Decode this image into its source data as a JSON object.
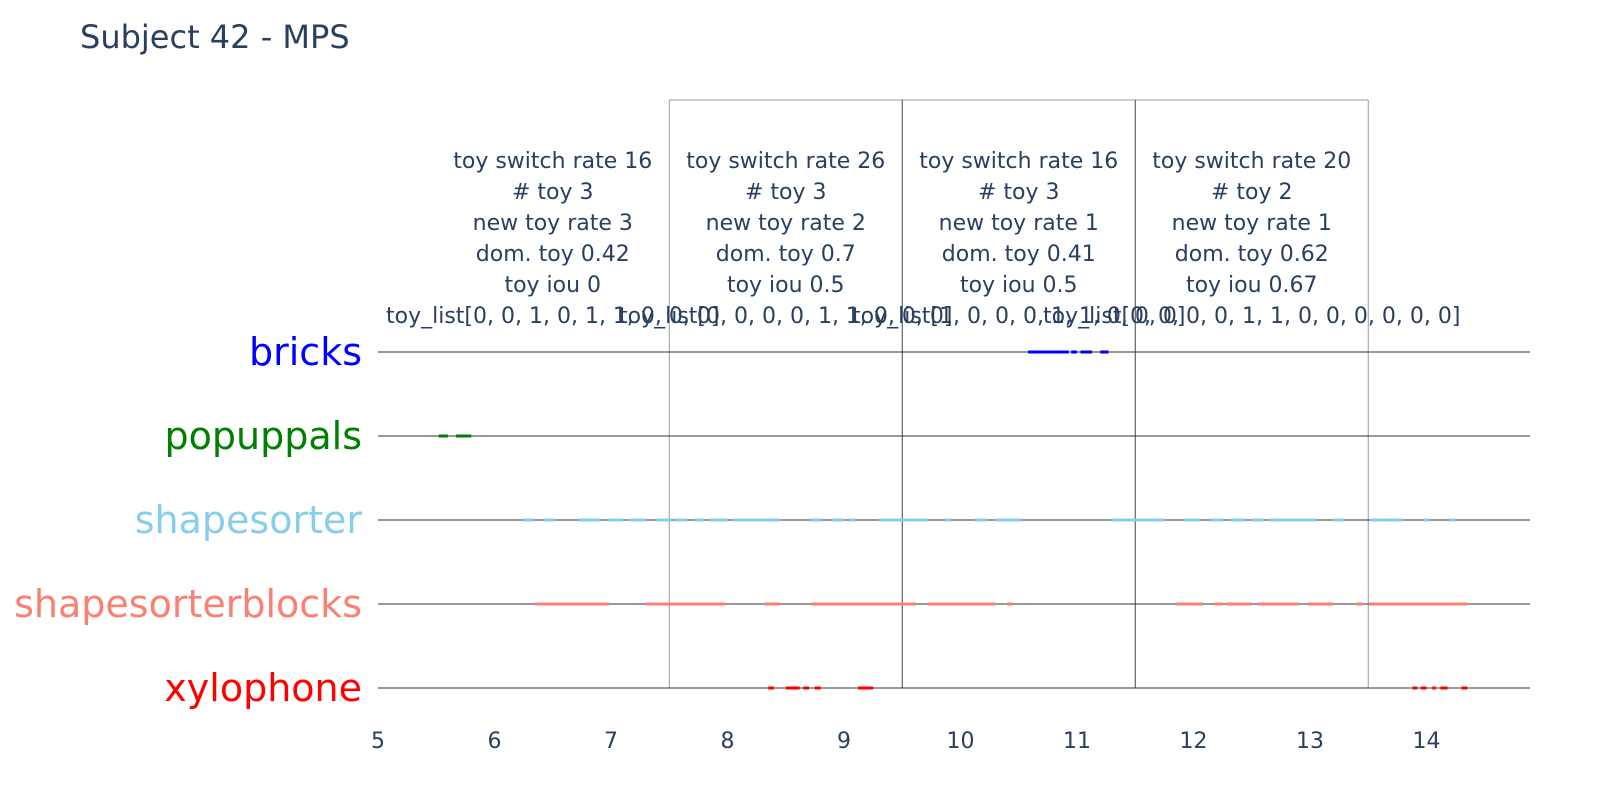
{
  "chart_data": {
    "type": "timeline",
    "title": "Subject 42 - MPS",
    "xlim": [
      5,
      14.9
    ],
    "x_ticks": [
      5,
      6,
      7,
      8,
      9,
      10,
      11,
      12,
      13,
      14
    ],
    "window_bounds": [
      7.5,
      9.5,
      11.5,
      13.5
    ],
    "toys": [
      {
        "name": "bricks",
        "label": "bricks",
        "color": "#0000ff",
        "segments": [
          [
            10.58,
            10.93
          ],
          [
            10.95,
            11.0
          ],
          [
            11.03,
            11.13
          ],
          [
            11.2,
            11.27
          ]
        ]
      },
      {
        "name": "popuppals",
        "label": "popuppals",
        "color": "#008000",
        "segments": [
          [
            5.52,
            5.6
          ],
          [
            5.67,
            5.8
          ]
        ]
      },
      {
        "name": "shape_sorter",
        "label": "shapesorter",
        "color": "#87ceeb",
        "segments": [
          [
            6.25,
            6.33
          ],
          [
            6.42,
            6.52
          ],
          [
            6.72,
            6.9
          ],
          [
            6.97,
            7.1
          ],
          [
            7.15,
            7.3
          ],
          [
            7.38,
            7.52
          ],
          [
            7.55,
            7.65
          ],
          [
            7.72,
            7.8
          ],
          [
            7.85,
            8.0
          ],
          [
            8.05,
            8.45
          ],
          [
            8.72,
            8.8
          ],
          [
            8.9,
            9.0
          ],
          [
            9.05,
            9.1
          ],
          [
            9.3,
            9.72
          ],
          [
            9.87,
            9.92
          ],
          [
            10.12,
            10.22
          ],
          [
            10.3,
            10.52
          ],
          [
            11.3,
            11.75
          ],
          [
            11.92,
            12.05
          ],
          [
            12.15,
            12.25
          ],
          [
            12.32,
            12.45
          ],
          [
            12.5,
            12.6
          ],
          [
            12.65,
            13.05
          ],
          [
            13.2,
            13.3
          ],
          [
            13.52,
            13.8
          ],
          [
            13.98,
            14.02
          ],
          [
            14.2,
            14.25
          ]
        ]
      },
      {
        "name": "shape_sorter_blocks",
        "label": "shapesorterblocks",
        "color": "#fa8072",
        "segments": [
          [
            6.35,
            6.98
          ],
          [
            7.3,
            7.98
          ],
          [
            8.32,
            8.45
          ],
          [
            8.72,
            9.62
          ],
          [
            9.72,
            10.3
          ],
          [
            10.4,
            10.45
          ],
          [
            11.85,
            12.08
          ],
          [
            12.18,
            12.25
          ],
          [
            12.28,
            12.5
          ],
          [
            12.55,
            12.9
          ],
          [
            12.98,
            13.2
          ],
          [
            13.4,
            13.45
          ],
          [
            13.5,
            14.35
          ]
        ]
      },
      {
        "name": "xylophone",
        "label": "xylophone",
        "color": "#ff0000",
        "segments": [
          [
            8.35,
            8.4
          ],
          [
            8.5,
            8.62
          ],
          [
            8.65,
            8.7
          ],
          [
            8.75,
            8.8
          ],
          [
            9.12,
            9.25
          ],
          [
            13.88,
            13.92
          ],
          [
            13.95,
            14.0
          ],
          [
            14.05,
            14.08
          ],
          [
            14.12,
            14.18
          ],
          [
            14.3,
            14.35
          ]
        ]
      }
    ],
    "annotations": [
      {
        "x": 6.5,
        "lines": [
          "toy switch rate 16",
          "# toy 3",
          "new toy rate 3",
          "dom. toy 0.42",
          "toy iou 0",
          "toy_list[0, 0, 1, 0, 1, 1, 0, 0, 0]"
        ]
      },
      {
        "x": 8.5,
        "lines": [
          "toy switch rate 26",
          "# toy 3",
          "new toy rate 2",
          "dom. toy 0.7",
          "toy iou 0.5",
          "toy_list[0, 0, 0, 0, 1, 1, 0, 0, 0]"
        ]
      },
      {
        "x": 10.5,
        "lines": [
          "toy switch rate 16",
          "# toy 3",
          "new toy rate 1",
          "dom. toy 0.41",
          "toy iou 0.5",
          "toy_list[1, 0, 0, 0, 1, 1, 0, 0, 0]"
        ]
      },
      {
        "x": 12.5,
        "lines": [
          "toy switch rate 20",
          "# toy 2",
          "new toy rate 1",
          "dom. toy 0.62",
          "toy iou 0.67",
          "toy_list[0, 0, 0, 0, 1, 1, 0, 0, 0, 0, 0, 0]"
        ]
      }
    ]
  }
}
